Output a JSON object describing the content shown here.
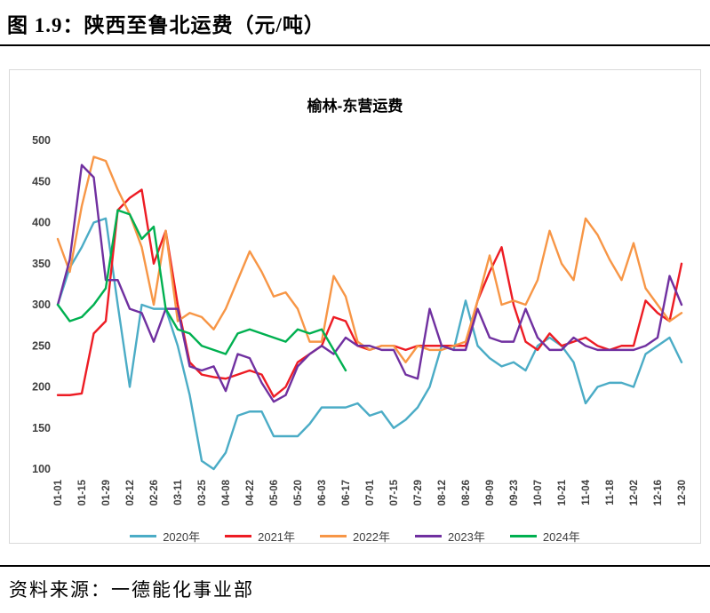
{
  "page": {
    "title": "图 1.9：陕西至鲁北运费（元/吨）",
    "source": "资料来源：一德能化事业部"
  },
  "chart_data": {
    "type": "line",
    "title": "榆林-东营运费",
    "ylim": [
      100,
      500
    ],
    "ytick_step": 50,
    "grid": false,
    "legend_position": "bottom",
    "xtick_every": 2,
    "x": [
      "01-01",
      "01-08",
      "01-15",
      "01-22",
      "01-29",
      "02-05",
      "02-12",
      "02-19",
      "02-26",
      "03-04",
      "03-11",
      "03-18",
      "03-25",
      "04-01",
      "04-08",
      "04-15",
      "04-22",
      "04-29",
      "05-06",
      "05-13",
      "05-20",
      "05-27",
      "06-03",
      "06-10",
      "06-17",
      "06-24",
      "07-01",
      "07-08",
      "07-15",
      "07-22",
      "07-29",
      "08-05",
      "08-12",
      "08-19",
      "08-26",
      "09-02",
      "09-09",
      "09-16",
      "09-23",
      "09-30",
      "10-07",
      "10-14",
      "10-21",
      "10-28",
      "11-04",
      "11-11",
      "11-18",
      "11-25",
      "12-02",
      "12-09",
      "12-16",
      "12-23",
      "12-30"
    ],
    "series": [
      {
        "name": "2020年",
        "color": "#4bacc6",
        "values": [
          300,
          345,
          370,
          400,
          405,
          300,
          200,
          300,
          295,
          295,
          250,
          190,
          110,
          100,
          120,
          165,
          170,
          170,
          140,
          140,
          140,
          155,
          175,
          175,
          175,
          180,
          165,
          170,
          150,
          160,
          175,
          200,
          250,
          245,
          305,
          250,
          235,
          225,
          230,
          220,
          250,
          260,
          250,
          230,
          180,
          200,
          205,
          205,
          200,
          240,
          250,
          260,
          230
        ]
      },
      {
        "name": "2021年",
        "color": "#ed1c24",
        "values": [
          190,
          190,
          192,
          265,
          280,
          415,
          430,
          440,
          350,
          390,
          300,
          230,
          215,
          212,
          210,
          215,
          220,
          215,
          188,
          200,
          230,
          240,
          250,
          285,
          280,
          250,
          245,
          250,
          250,
          245,
          250,
          250,
          250,
          250,
          250,
          305,
          340,
          370,
          300,
          255,
          245,
          265,
          250,
          255,
          260,
          250,
          245,
          250,
          250,
          305,
          290,
          280,
          350
        ]
      },
      {
        "name": "2022年",
        "color": "#f79646",
        "values": [
          380,
          340,
          420,
          480,
          475,
          440,
          410,
          370,
          300,
          390,
          280,
          290,
          285,
          270,
          295,
          330,
          365,
          340,
          310,
          315,
          295,
          255,
          255,
          335,
          310,
          255,
          245,
          250,
          250,
          230,
          250,
          245,
          245,
          250,
          255,
          305,
          360,
          300,
          305,
          300,
          330,
          390,
          350,
          330,
          405,
          385,
          355,
          330,
          375,
          320,
          300,
          280,
          290
        ]
      },
      {
        "name": "2023年",
        "color": "#7030a0",
        "values": [
          300,
          355,
          470,
          455,
          330,
          330,
          295,
          290,
          255,
          295,
          295,
          225,
          220,
          225,
          195,
          240,
          235,
          205,
          182,
          190,
          225,
          240,
          250,
          240,
          260,
          250,
          250,
          245,
          245,
          215,
          210,
          295,
          250,
          245,
          245,
          295,
          260,
          255,
          255,
          295,
          260,
          245,
          245,
          260,
          250,
          245,
          245,
          245,
          245,
          250,
          260,
          335,
          300
        ]
      },
      {
        "name": "2024年",
        "color": "#00b050",
        "values": [
          300,
          280,
          285,
          300,
          320,
          415,
          410,
          380,
          395,
          295,
          270,
          265,
          250,
          245,
          240,
          265,
          270,
          265,
          260,
          255,
          270,
          265,
          270,
          245,
          220,
          null,
          null,
          null,
          null,
          null,
          null,
          null,
          null,
          null,
          null,
          null,
          null,
          null,
          null,
          null,
          null,
          null,
          null,
          null,
          null,
          null,
          null,
          null,
          null,
          null,
          null,
          null,
          null
        ]
      }
    ]
  }
}
